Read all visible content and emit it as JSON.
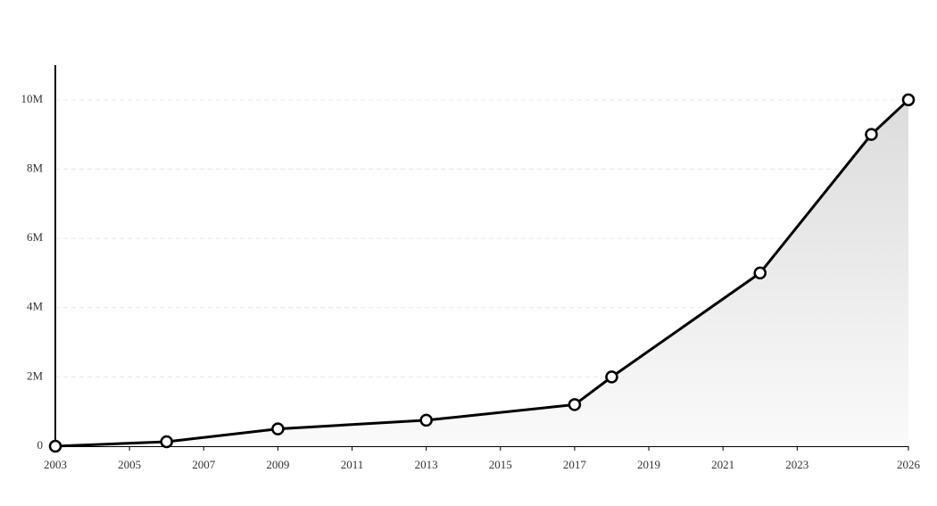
{
  "chart_data": {
    "type": "line",
    "x": [
      2003,
      2006,
      2009,
      2013,
      2017,
      2018,
      2022,
      2025,
      2026
    ],
    "series": [
      {
        "color": "#000000",
        "values": [
          0,
          130000,
          500000,
          750000,
          1200000,
          2000000,
          5000000,
          9000000,
          10000000
        ]
      }
    ],
    "area": true,
    "xlim": [
      2003,
      2026
    ],
    "xticks": [
      2003,
      2005,
      2007,
      2009,
      2011,
      2013,
      2015,
      2017,
      2019,
      2021,
      2023,
      2026
    ],
    "ylim": [
      0,
      11000000
    ],
    "yticks": [
      0,
      {
        "value": 2000000,
        "label": "2M"
      },
      {
        "value": 4000000,
        "label": "4M"
      },
      {
        "value": 6000000,
        "label": "6M"
      },
      {
        "value": 8000000,
        "label": "8M"
      },
      {
        "value": 10000000,
        "label": "10M"
      }
    ],
    "grid": true
  }
}
